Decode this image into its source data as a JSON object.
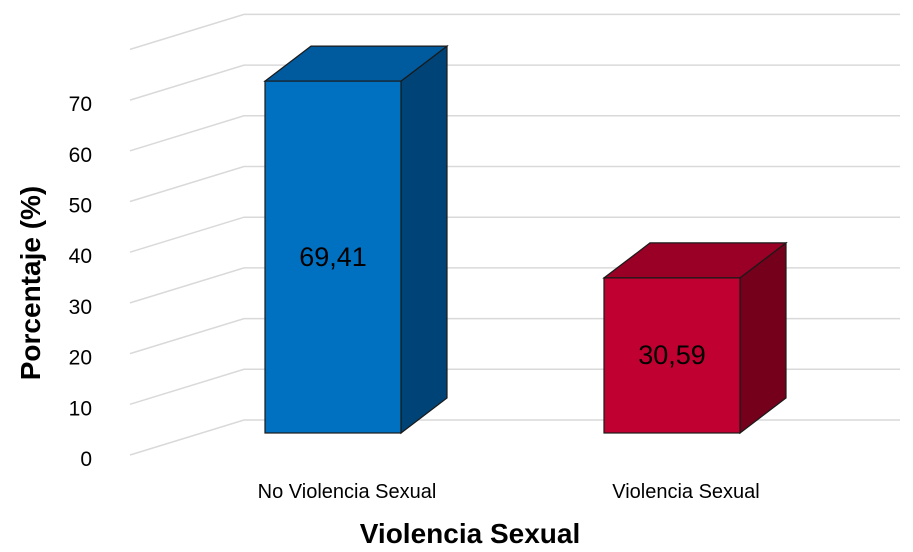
{
  "chart_data": {
    "type": "bar",
    "style": "3d-column",
    "categories": [
      "No Violencia Sexual",
      "Violencia Sexual"
    ],
    "values": [
      69.41,
      30.59
    ],
    "data_labels": [
      "69,41",
      "30,59"
    ],
    "xlabel": "Violencia Sexual",
    "ylabel": "Porcentaje (%)",
    "ylim": [
      0,
      70
    ],
    "yticks": [
      "0",
      "10",
      "20",
      "30",
      "40",
      "50",
      "60",
      "70"
    ],
    "grid": true,
    "legend": "none",
    "colors": {
      "bars": [
        {
          "front": "#0070c0",
          "top": "#005a9e",
          "side": "#004477"
        },
        {
          "front": "#c00030",
          "top": "#9a0025",
          "side": "#75001c"
        }
      ],
      "grid": "#d9d9d9"
    }
  }
}
